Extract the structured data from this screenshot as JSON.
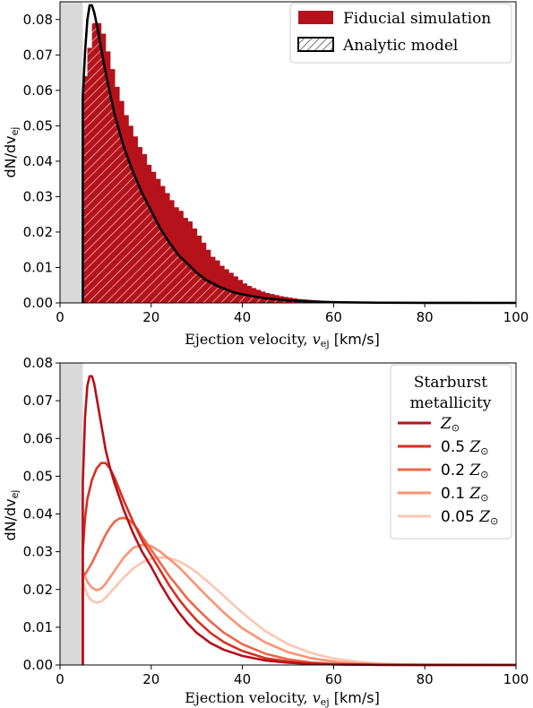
{
  "chart_data": [
    {
      "type": "bar",
      "xlabel": "Ejection velocity,",
      "xlabel_var": "v",
      "xlabel_sub": "ej",
      "xlabel_unit": "[km/s]",
      "ylabel": "dN/dv",
      "ylabel_sub": "ej",
      "xlim": [
        0,
        100
      ],
      "ylim": [
        0,
        0.085
      ],
      "xticks": [
        "0",
        "20",
        "40",
        "60",
        "80",
        "100"
      ],
      "xtick_values": [
        0,
        20,
        40,
        60,
        80,
        100
      ],
      "yticks": [
        "0.00",
        "0.01",
        "0.02",
        "0.03",
        "0.04",
        "0.05",
        "0.06",
        "0.07",
        "0.08"
      ],
      "ytick_values": [
        0,
        0.01,
        0.02,
        0.03,
        0.04,
        0.05,
        0.06,
        0.07,
        0.08
      ],
      "shaded_region": [
        0,
        5
      ],
      "legend_position": "top-right",
      "legend": [
        "Fiducial simulation",
        "Analytic model"
      ],
      "series": [
        {
          "name": "Fiducial simulation",
          "kind": "histogram",
          "color": "#b5121b",
          "bin_width": 1,
          "bin_start": 5,
          "values": [
            0.064,
            0.072,
            0.079,
            0.079,
            0.076,
            0.071,
            0.066,
            0.061,
            0.057,
            0.053,
            0.05,
            0.047,
            0.044,
            0.042,
            0.039,
            0.037,
            0.035,
            0.033,
            0.031,
            0.029,
            0.027,
            0.026,
            0.024,
            0.023,
            0.021,
            0.019,
            0.017,
            0.015,
            0.013,
            0.012,
            0.0105,
            0.0095,
            0.0085,
            0.0075,
            0.0065,
            0.0055,
            0.0048,
            0.0042,
            0.0037,
            0.0032,
            0.0028,
            0.0025,
            0.0022,
            0.0019,
            0.0017,
            0.0015,
            0.0013,
            0.0011,
            0.001,
            0.0009,
            0.0008,
            0.0007,
            0.0006,
            0.0005,
            0.0004,
            0.0004,
            0.0003,
            0.0003,
            0.0002,
            0.0002,
            0.0002,
            0.0001,
            0.0001,
            0.0001,
            0.0001,
            0.0001,
            0.0001,
            0.0001,
            0.0001,
            0.0001,
            0.0001,
            0.0,
            0.0,
            0.0,
            0.0,
            0.0,
            0.0,
            0.0,
            0.0,
            0.0,
            0.0,
            0.0,
            0.0,
            0.0,
            0.0,
            0.0,
            0.0,
            0.0,
            0.0,
            0.0,
            0.0,
            0.0,
            0.0,
            0.0,
            0.0
          ]
        },
        {
          "name": "Analytic model",
          "kind": "line",
          "color": "#000000",
          "x": [
            5,
            5,
            5.5,
            6,
            6.5,
            7,
            7.5,
            8,
            9,
            10,
            12,
            14,
            16,
            18,
            20,
            22,
            24,
            26,
            28,
            30,
            32,
            35,
            38,
            40,
            45,
            50,
            55,
            60,
            70,
            80,
            100
          ],
          "y": [
            0,
            0.058,
            0.071,
            0.08,
            0.084,
            0.084,
            0.082,
            0.079,
            0.072,
            0.065,
            0.053,
            0.044,
            0.037,
            0.031,
            0.026,
            0.021,
            0.017,
            0.0135,
            0.011,
            0.0085,
            0.0065,
            0.0045,
            0.003,
            0.0024,
            0.0013,
            0.0007,
            0.0004,
            0.0002,
            6e-05,
            2e-05,
            0
          ]
        }
      ]
    },
    {
      "type": "line",
      "xlabel": "Ejection velocity,",
      "xlabel_var": "v",
      "xlabel_sub": "ej",
      "xlabel_unit": "[km/s]",
      "ylabel": "dN/dv",
      "ylabel_sub": "ej",
      "xlim": [
        0,
        100
      ],
      "ylim": [
        0,
        0.08
      ],
      "xticks": [
        "0",
        "20",
        "40",
        "60",
        "80",
        "100"
      ],
      "xtick_values": [
        0,
        20,
        40,
        60,
        80,
        100
      ],
      "yticks": [
        "0.00",
        "0.01",
        "0.02",
        "0.03",
        "0.04",
        "0.05",
        "0.06",
        "0.07",
        "0.08"
      ],
      "ytick_values": [
        0,
        0.01,
        0.02,
        0.03,
        0.04,
        0.05,
        0.06,
        0.07,
        0.08
      ],
      "shaded_region": [
        0,
        5
      ],
      "legend_position": "top-right",
      "legend_title": [
        "Starburst",
        "metallicity"
      ],
      "series": [
        {
          "name": "Z⊙",
          "coef": "",
          "color": "#b5121b",
          "width": 2.6,
          "x": [
            5,
            5,
            5.5,
            6,
            6.5,
            7,
            7.5,
            8,
            9,
            10,
            11,
            12,
            14,
            16,
            18,
            20,
            22,
            24,
            26,
            28,
            30,
            33,
            36,
            40,
            45,
            50,
            55,
            60,
            70,
            80,
            100
          ],
          "y": [
            0,
            0.048,
            0.066,
            0.074,
            0.0765,
            0.0765,
            0.0745,
            0.071,
            0.064,
            0.057,
            0.052,
            0.048,
            0.041,
            0.035,
            0.03,
            0.026,
            0.0215,
            0.0175,
            0.014,
            0.011,
            0.0085,
            0.0058,
            0.004,
            0.0024,
            0.0012,
            0.0006,
            0.0003,
            0.00015,
            4e-05,
            1e-05,
            0
          ]
        },
        {
          "name": "Z⊙",
          "coef": "0.5",
          "color": "#d7301f",
          "width": 2.6,
          "x": [
            5,
            5,
            5.5,
            6,
            7,
            8,
            9,
            10,
            11,
            12,
            13,
            14,
            16,
            18,
            20,
            22,
            24,
            26,
            28,
            30,
            33,
            36,
            40,
            45,
            50,
            55,
            60,
            70,
            80,
            100
          ],
          "y": [
            0,
            0.03,
            0.039,
            0.044,
            0.049,
            0.052,
            0.0535,
            0.0535,
            0.052,
            0.0495,
            0.0465,
            0.0435,
            0.038,
            0.033,
            0.029,
            0.025,
            0.021,
            0.0175,
            0.0145,
            0.0118,
            0.0085,
            0.006,
            0.0037,
            0.0018,
            0.0009,
            0.0004,
            0.0002,
            5e-05,
            1e-05,
            0
          ]
        },
        {
          "name": "Z⊙",
          "coef": "0.2",
          "color": "#ef6548",
          "width": 2.6,
          "x": [
            5,
            5,
            5.5,
            6,
            7,
            8,
            9,
            10,
            11,
            12,
            13,
            14,
            15,
            16,
            17,
            18,
            20,
            22,
            24,
            26,
            28,
            30,
            33,
            36,
            40,
            45,
            50,
            55,
            60,
            65,
            70,
            80,
            100
          ],
          "y": [
            0,
            0.024,
            0.024,
            0.025,
            0.027,
            0.0295,
            0.032,
            0.0345,
            0.0365,
            0.038,
            0.0388,
            0.039,
            0.0385,
            0.0375,
            0.036,
            0.034,
            0.0305,
            0.027,
            0.0235,
            0.0205,
            0.0175,
            0.015,
            0.0115,
            0.0085,
            0.0055,
            0.003,
            0.0015,
            0.0007,
            0.0003,
            0.00013,
            5e-05,
            1e-05,
            0
          ]
        },
        {
          "name": "Z⊙",
          "coef": "0.1",
          "color": "#fc9272",
          "width": 2.6,
          "x": [
            5,
            5,
            6,
            7,
            8,
            9,
            10,
            12,
            14,
            16,
            18,
            19,
            20,
            22,
            24,
            26,
            28,
            30,
            33,
            36,
            40,
            45,
            50,
            55,
            60,
            65,
            70,
            80,
            100
          ],
          "y": [
            0,
            0.025,
            0.022,
            0.0205,
            0.0198,
            0.0202,
            0.0215,
            0.025,
            0.0285,
            0.031,
            0.0318,
            0.0318,
            0.0315,
            0.03,
            0.028,
            0.026,
            0.0235,
            0.021,
            0.0173,
            0.0138,
            0.0097,
            0.006,
            0.0034,
            0.0018,
            0.0009,
            0.0004,
            0.00018,
            3e-05,
            0
          ]
        },
        {
          "name": "Z⊙",
          "coef": "0.05",
          "color": "#fcc5b0",
          "width": 2.6,
          "x": [
            5,
            5,
            6,
            7,
            8,
            9,
            10,
            12,
            14,
            16,
            18,
            20,
            22,
            24,
            26,
            28,
            30,
            32,
            35,
            38,
            40,
            45,
            50,
            55,
            60,
            65,
            70,
            75,
            80,
            100
          ],
          "y": [
            0,
            0.022,
            0.0185,
            0.017,
            0.0165,
            0.0168,
            0.0178,
            0.0205,
            0.0232,
            0.0255,
            0.0272,
            0.0282,
            0.0285,
            0.0283,
            0.0275,
            0.0262,
            0.0245,
            0.0225,
            0.0193,
            0.016,
            0.0138,
            0.009,
            0.0055,
            0.0032,
            0.0017,
            0.0009,
            0.0004,
            0.0002,
            0.0001,
            0
          ]
        }
      ]
    }
  ]
}
